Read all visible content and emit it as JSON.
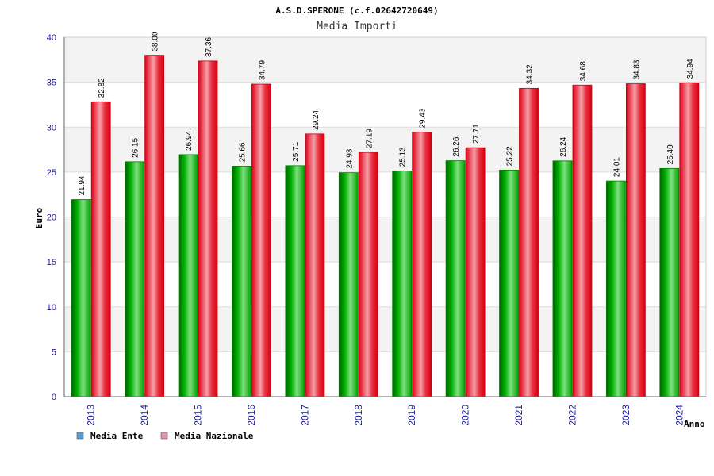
{
  "chart_data": {
    "type": "bar",
    "title": "A.S.D.SPERONE (c.f.02642720649)",
    "subtitle": "Media Importi",
    "ylabel": "Euro",
    "xlabel": "Anno",
    "ylim": [
      0,
      40
    ],
    "yticks": [
      0,
      5,
      10,
      15,
      20,
      25,
      30,
      35,
      40
    ],
    "grid": true,
    "legend_position": "bottom-left",
    "categories": [
      "2013",
      "2014",
      "2015",
      "2016",
      "2017",
      "2018",
      "2019",
      "2020",
      "2021",
      "2022",
      "2023",
      "2024"
    ],
    "series": [
      {
        "name": "Media Ente",
        "color": "#00a000",
        "legend_color": "#5b9bd5",
        "values": [
          21.94,
          26.15,
          26.94,
          25.66,
          25.71,
          24.93,
          25.13,
          26.26,
          25.22,
          26.24,
          24.01,
          25.4
        ],
        "labels": [
          "21.94",
          "26.15",
          "26.94",
          "25.66",
          "25.71",
          "24.93",
          "25.13",
          "26.26",
          "25.22",
          "26.24",
          "24.01",
          "25.40"
        ]
      },
      {
        "name": "Media Nazionale",
        "color": "#e8001a",
        "legend_color": "#e890b8",
        "values": [
          32.82,
          38.0,
          37.36,
          34.79,
          29.24,
          27.19,
          29.43,
          27.71,
          34.32,
          34.68,
          34.83,
          34.94
        ],
        "labels": [
          "32.82",
          "38.00",
          "37.36",
          "34.79",
          "29.24",
          "27.19",
          "29.43",
          "27.71",
          "34.32",
          "34.68",
          "34.83",
          "34.94"
        ]
      }
    ]
  }
}
